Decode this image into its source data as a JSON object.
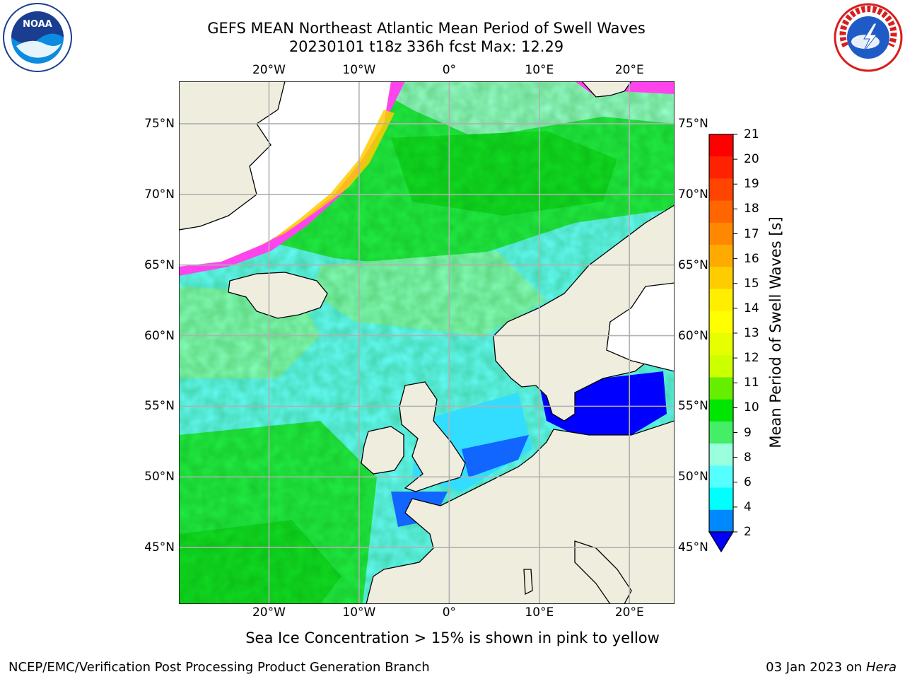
{
  "title": {
    "line1": "GEFS MEAN Northeast Atlantic Mean Period of Swell Waves",
    "line2": "20230101 t18z 336h fcst   Max: 12.29"
  },
  "logos": {
    "noaa": {
      "icon": "noaa-logo-icon",
      "text": "NOAA"
    },
    "nws": {
      "icon": "nws-logo-icon",
      "ring_text": "NATIONAL WEATHER SERVICE"
    }
  },
  "map": {
    "projection": "lat-lon",
    "lon_range": [
      -30,
      25
    ],
    "lat_range": [
      41,
      78
    ],
    "lon_ticks": [
      {
        "value": -20,
        "label": "20°W"
      },
      {
        "value": -10,
        "label": "10°W"
      },
      {
        "value": 0,
        "label": "0°"
      },
      {
        "value": 10,
        "label": "10°E"
      },
      {
        "value": 20,
        "label": "20°E"
      }
    ],
    "lat_ticks": [
      {
        "value": 75,
        "label": "75°N"
      },
      {
        "value": 70,
        "label": "70°N"
      },
      {
        "value": 65,
        "label": "65°N"
      },
      {
        "value": 60,
        "label": "60°N"
      },
      {
        "value": 55,
        "label": "55°N"
      },
      {
        "value": 50,
        "label": "50°N"
      },
      {
        "value": 45,
        "label": "45°N"
      }
    ],
    "colors": {
      "land": "#efedde",
      "grid": "#b0b0b0",
      "coast": "#000000",
      "sea_ice": "#ff44ee"
    }
  },
  "colorbar": {
    "title": "Mean Period of Swell Waves [s]",
    "labels": [
      "21",
      "20",
      "19",
      "18",
      "17",
      "16",
      "15",
      "14",
      "13",
      "12",
      "11",
      "10",
      "9",
      "8",
      "6",
      "4",
      "2"
    ],
    "colors_top_to_bottom": [
      "#ff0000",
      "#ff2200",
      "#ff4400",
      "#ff6600",
      "#ff8800",
      "#ffaa00",
      "#ffcc00",
      "#ffee00",
      "#ffff00",
      "#e6ff00",
      "#ccff00",
      "#66ee00",
      "#00e600",
      "#44ee66",
      "#99ffdd",
      "#55ffff",
      "#00ffff",
      "#0088ff"
    ],
    "extend_color": "#0000ff"
  },
  "footnote": "Sea Ice Concentration > 15% is shown in pink to yellow",
  "credits": {
    "left": "NCEP/EMC/Verification Post Processing Product Generation Branch",
    "right_prefix": "03 Jan 2023 on ",
    "right_host": "Hera"
  }
}
